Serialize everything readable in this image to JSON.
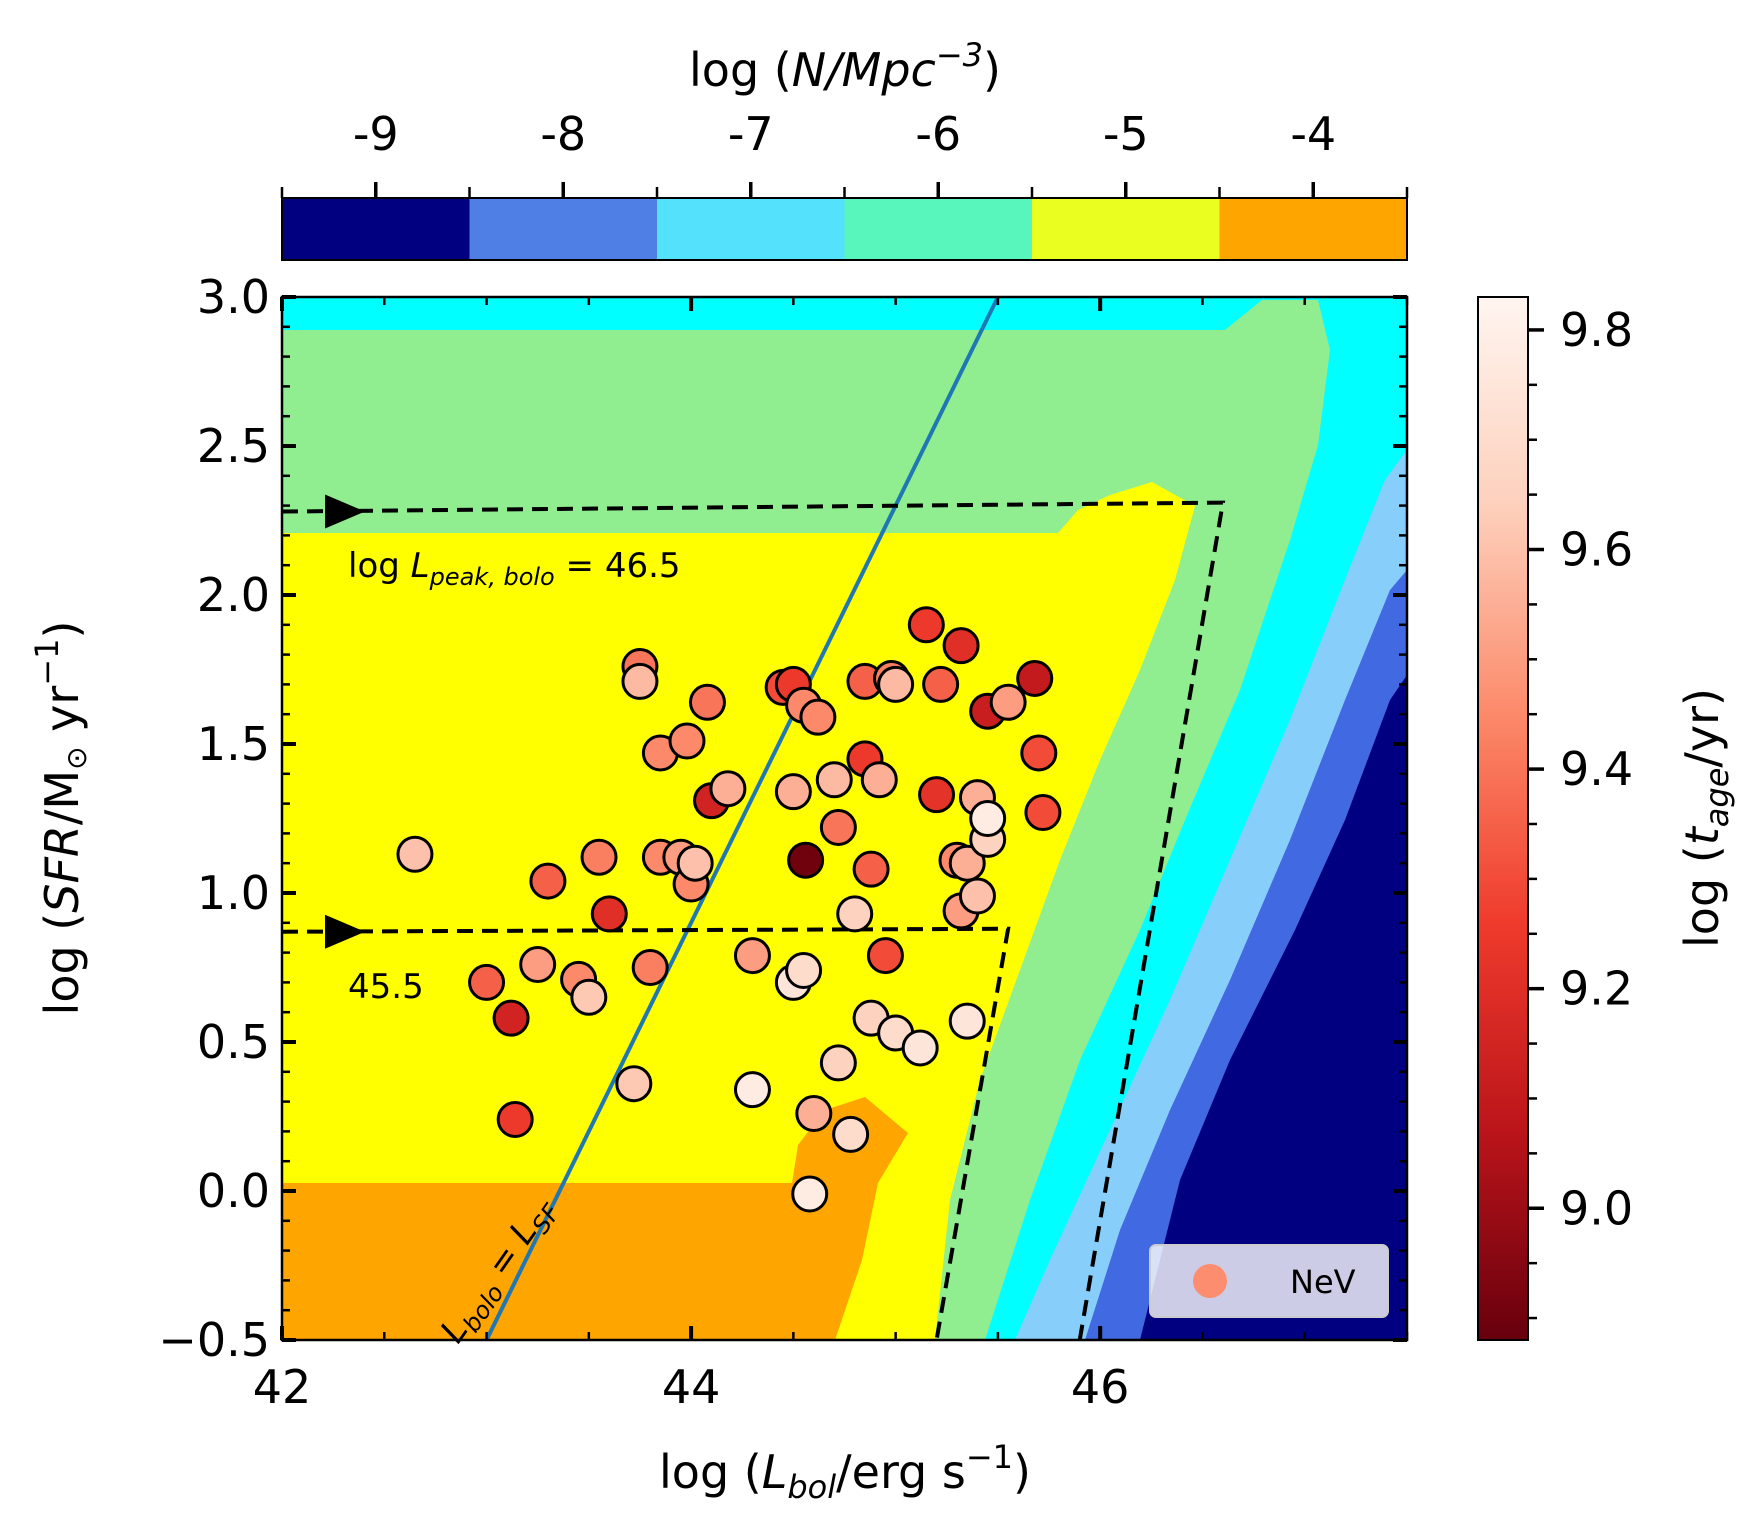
{
  "chart_data": {
    "type": "scatter",
    "xlabel": {
      "pre": "log (",
      "var": "L",
      "sub": "bol",
      "post": "/erg s",
      "sup": "−1",
      "close": ")"
    },
    "ylabel": {
      "pre": "log (",
      "var": "SFR",
      "post": "/M",
      "sun": "⊙",
      "post2": " yr",
      "sup": "−1",
      "close": ")"
    },
    "xlim": [
      42,
      47.5
    ],
    "ylim": [
      -0.5,
      3.0
    ],
    "xticks": [
      "42",
      "44",
      "46"
    ],
    "yticks": [
      "−0.5",
      "0.0",
      "0.5",
      "1.0",
      "1.5",
      "2.0",
      "2.5",
      "3.0"
    ],
    "colorbar_top": {
      "label": {
        "pre": "log (",
        "var": "N/Mpc",
        "sup": "−3",
        "close": ")"
      },
      "ticks": [
        "-9",
        "-8",
        "-7",
        "-6",
        "-5",
        "-4"
      ],
      "bins": [
        {
          "color": "#000080"
        },
        {
          "color": "#4f7fe4"
        },
        {
          "color": "#54e1fb"
        },
        {
          "color": "#58f5bd"
        },
        {
          "color": "#eaff1f"
        },
        {
          "color": "#ffa500"
        }
      ]
    },
    "colorbar_right": {
      "label": {
        "pre": "log (",
        "var": "t",
        "sub": "age",
        "post": "/yr)"
      },
      "range": [
        8.88,
        9.83
      ],
      "ticks": [
        "9.0",
        "9.2",
        "9.4",
        "9.6",
        "9.8"
      ]
    },
    "contours": {
      "colors": {
        "orange": "#ffa500",
        "yellow": "#ffff00",
        "green": "#90ee90",
        "cyan": "#00ffff",
        "lightblue": "#87cefa",
        "blue": "#4169e1",
        "navy": "#000080"
      }
    },
    "line": {
      "label": {
        "var": "L",
        "sub1": "bolo",
        "eq": " = ",
        "var2": "L",
        "sub2": "SF"
      },
      "color": "#1f77b4",
      "points": [
        [
          43.0,
          -0.5
        ],
        [
          45.5,
          3.0
        ]
      ]
    },
    "peak_lines": [
      {
        "label": {
          "pre": "log ",
          "var": "L",
          "sub": "peak, bolo",
          "post": " = 46.5"
        },
        "y_start": 2.28,
        "x_corner": 46.6,
        "y_corner": 2.31,
        "x_bottom": 45.9
      },
      {
        "label": {
          "pre": "45.5"
        },
        "y_start": 0.87,
        "x_corner": 45.55,
        "y_corner": 0.88,
        "x_bottom": 45.2
      }
    ],
    "legend": {
      "label": "NeV",
      "location": "lower-right",
      "marker_color": "#fc8d6f"
    },
    "series": [
      {
        "name": "NeV",
        "points": [
          [
            42.65,
            1.13,
            9.6
          ],
          [
            43.0,
            0.7,
            9.35
          ],
          [
            43.12,
            0.58,
            9.15
          ],
          [
            43.14,
            0.24,
            9.25
          ],
          [
            43.25,
            0.76,
            9.5
          ],
          [
            43.3,
            1.04,
            9.35
          ],
          [
            43.45,
            0.71,
            9.45
          ],
          [
            43.5,
            0.65,
            9.62
          ],
          [
            43.55,
            1.12,
            9.42
          ],
          [
            43.6,
            0.93,
            9.2
          ],
          [
            43.75,
            1.76,
            9.4
          ],
          [
            43.75,
            1.71,
            9.58
          ],
          [
            43.72,
            0.36,
            9.62
          ],
          [
            43.8,
            0.75,
            9.42
          ],
          [
            43.85,
            1.12,
            9.45
          ],
          [
            43.85,
            1.47,
            9.45
          ],
          [
            43.95,
            1.12,
            9.5
          ],
          [
            43.98,
            1.51,
            9.45
          ],
          [
            44.0,
            1.03,
            9.45
          ],
          [
            44.02,
            1.1,
            9.6
          ],
          [
            44.08,
            1.64,
            9.4
          ],
          [
            44.1,
            1.31,
            9.15
          ],
          [
            44.18,
            1.35,
            9.55
          ],
          [
            44.3,
            0.79,
            9.5
          ],
          [
            44.3,
            0.34,
            9.78
          ],
          [
            44.45,
            1.69,
            9.3
          ],
          [
            44.5,
            1.7,
            9.25
          ],
          [
            44.5,
            1.34,
            9.55
          ],
          [
            44.5,
            0.7,
            9.75
          ],
          [
            44.55,
            1.63,
            9.45
          ],
          [
            44.55,
            0.74,
            9.7
          ],
          [
            44.56,
            1.11,
            8.9
          ],
          [
            44.58,
            -0.01,
            9.78
          ],
          [
            44.6,
            0.26,
            9.55
          ],
          [
            44.62,
            1.59,
            9.45
          ],
          [
            44.7,
            1.38,
            9.58
          ],
          [
            44.72,
            1.22,
            9.4
          ],
          [
            44.72,
            0.43,
            9.65
          ],
          [
            44.78,
            0.19,
            9.7
          ],
          [
            44.8,
            0.93,
            9.65
          ],
          [
            44.85,
            1.45,
            9.25
          ],
          [
            44.85,
            1.71,
            9.35
          ],
          [
            44.88,
            1.08,
            9.35
          ],
          [
            44.88,
            0.58,
            9.65
          ],
          [
            44.92,
            1.38,
            9.55
          ],
          [
            44.95,
            0.79,
            9.3
          ],
          [
            44.98,
            1.72,
            9.42
          ],
          [
            45.0,
            1.7,
            9.58
          ],
          [
            45.0,
            0.53,
            9.7
          ],
          [
            45.12,
            0.48,
            9.75
          ],
          [
            45.15,
            1.9,
            9.25
          ],
          [
            45.2,
            1.33,
            9.22
          ],
          [
            45.22,
            1.7,
            9.35
          ],
          [
            45.3,
            1.11,
            9.45
          ],
          [
            45.32,
            0.94,
            9.5
          ],
          [
            45.32,
            1.83,
            9.2
          ],
          [
            45.35,
            1.1,
            9.55
          ],
          [
            45.35,
            0.57,
            9.75
          ],
          [
            45.4,
            1.32,
            9.55
          ],
          [
            45.4,
            0.99,
            9.6
          ],
          [
            45.45,
            1.61,
            9.12
          ],
          [
            45.45,
            1.18,
            9.65
          ],
          [
            45.45,
            1.25,
            9.78
          ],
          [
            45.55,
            1.64,
            9.5
          ],
          [
            45.68,
            1.72,
            9.1
          ],
          [
            45.7,
            1.47,
            9.3
          ],
          [
            45.72,
            1.27,
            9.3
          ]
        ]
      }
    ]
  }
}
